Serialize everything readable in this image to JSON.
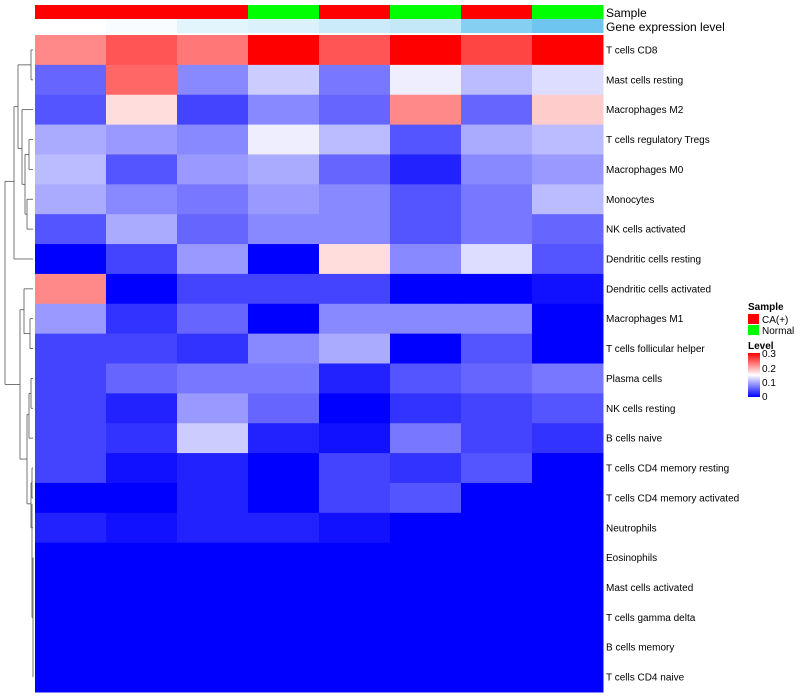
{
  "chart_data": {
    "type": "heatmap",
    "annotation_tracks": [
      "Sample",
      "Gene expression level"
    ],
    "samples": [
      {
        "group": "CA(+)",
        "expression_level": 0.0
      },
      {
        "group": "CA(+)",
        "expression_level": 0.05
      },
      {
        "group": "CA(+)",
        "expression_level": 0.2
      },
      {
        "group": "Normal",
        "expression_level": 0.25
      },
      {
        "group": "CA(+)",
        "expression_level": 0.35
      },
      {
        "group": "Normal",
        "expression_level": 0.4
      },
      {
        "group": "CA(+)",
        "expression_level": 0.85
      },
      {
        "group": "Normal",
        "expression_level": 1.0
      }
    ],
    "rows": [
      "T cells CD8",
      "Mast cells resting",
      "Macrophages M2",
      "T cells regulatory  Tregs",
      "Macrophages M0",
      "Monocytes",
      "NK cells activated",
      "Dendritic cells resting",
      "Dendritic cells activated",
      "Macrophages M1",
      "T cells follicular helper",
      "Plasma cells",
      "NK cells resting",
      "B cells naive",
      "T cells CD4 memory resting",
      "T cells CD4 memory activated",
      "Neutrophils",
      "Eosinophils",
      "Mast cells activated",
      "T cells gamma delta",
      "B cells memory",
      "T cells CD4 naive"
    ],
    "values": [
      [
        0.22,
        0.25,
        0.23,
        0.3,
        0.25,
        0.3,
        0.26,
        0.3
      ],
      [
        0.06,
        0.24,
        0.08,
        0.12,
        0.07,
        0.14,
        0.11,
        0.13
      ],
      [
        0.05,
        0.17,
        0.04,
        0.08,
        0.06,
        0.22,
        0.06,
        0.18
      ],
      [
        0.1,
        0.09,
        0.08,
        0.14,
        0.11,
        0.05,
        0.1,
        0.11
      ],
      [
        0.11,
        0.05,
        0.09,
        0.1,
        0.06,
        0.02,
        0.08,
        0.09
      ],
      [
        0.1,
        0.08,
        0.07,
        0.09,
        0.08,
        0.05,
        0.07,
        0.11
      ],
      [
        0.05,
        0.1,
        0.06,
        0.08,
        0.08,
        0.05,
        0.07,
        0.06
      ],
      [
        0.0,
        0.04,
        0.09,
        0.0,
        0.17,
        0.08,
        0.13,
        0.05
      ],
      [
        0.22,
        0.0,
        0.04,
        0.04,
        0.04,
        0.0,
        0.0,
        0.01
      ],
      [
        0.09,
        0.03,
        0.06,
        0.0,
        0.08,
        0.08,
        0.08,
        0.0
      ],
      [
        0.04,
        0.04,
        0.03,
        0.08,
        0.1,
        0.0,
        0.05,
        0.0
      ],
      [
        0.04,
        0.06,
        0.07,
        0.07,
        0.02,
        0.05,
        0.06,
        0.07
      ],
      [
        0.04,
        0.02,
        0.09,
        0.06,
        0.0,
        0.03,
        0.04,
        0.05
      ],
      [
        0.04,
        0.03,
        0.12,
        0.02,
        0.01,
        0.07,
        0.04,
        0.03
      ],
      [
        0.04,
        0.01,
        0.02,
        0.0,
        0.04,
        0.03,
        0.05,
        0.0
      ],
      [
        0.0,
        0.0,
        0.02,
        0.0,
        0.04,
        0.05,
        0.0,
        0.0
      ],
      [
        0.02,
        0.01,
        0.02,
        0.02,
        0.01,
        0.0,
        0.0,
        0.0
      ],
      [
        0.0,
        0.0,
        0.0,
        0.0,
        0.0,
        0.0,
        0.0,
        0.0
      ],
      [
        0.0,
        0.0,
        0.0,
        0.0,
        0.0,
        0.0,
        0.0,
        0.0
      ],
      [
        0.0,
        0.0,
        0.0,
        0.0,
        0.0,
        0.0,
        0.0,
        0.0
      ],
      [
        0.0,
        0.0,
        0.0,
        0.0,
        0.0,
        0.0,
        0.0,
        0.0
      ],
      [
        0.0,
        0.0,
        0.0,
        0.0,
        0.0,
        0.0,
        0.0,
        0.0
      ]
    ],
    "color_scale": {
      "low": "#0000ff",
      "mid": "#ffffff",
      "high": "#ff0000",
      "mid_value": 0.15,
      "range": [
        0,
        0.3
      ]
    },
    "expression_scale": {
      "low": "#ffffff",
      "high": "#6ec6f0"
    },
    "legends": {
      "sample": {
        "title": "Sample",
        "entries": [
          {
            "label": "CA(+)",
            "color": "#ff0000"
          },
          {
            "label": "Normal",
            "color": "#00ff00"
          }
        ]
      },
      "level": {
        "title": "Level",
        "ticks": [
          "0.3",
          "0.2",
          "0.1",
          "0"
        ],
        "tick_values": [
          0.3,
          0.2,
          0.1,
          0
        ]
      }
    },
    "dendrogram": "row clustering (left side)"
  }
}
